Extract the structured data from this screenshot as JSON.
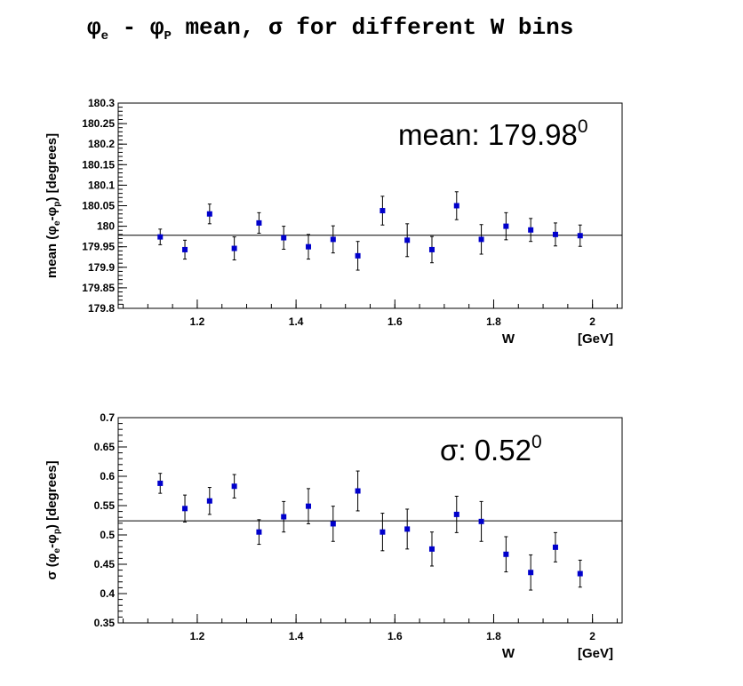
{
  "title_parts": {
    "phi": "φ",
    "sub_e": "e",
    "minus": " - ",
    "sub_p": "P",
    "rest": " mean, σ for different W bins"
  },
  "colors": {
    "marker": "#0000cc",
    "axis": "#000000",
    "fit_line": "#000000"
  },
  "chart_data": [
    {
      "type": "scatter",
      "name": "mean",
      "annotation_text": "mean: 179.98",
      "annotation_sup": "0",
      "ylabel_parts": [
        "mean (",
        "φ",
        "e",
        "-",
        "φ",
        "p",
        ")   [degrees]"
      ],
      "xlabel": "W",
      "xunit": "[GeV]",
      "xlim": [
        1.04,
        2.06
      ],
      "ylim": [
        179.8,
        180.3
      ],
      "x_ticks": [
        1.2,
        1.4,
        1.6,
        1.8,
        2.0
      ],
      "x_tick_labels": [
        "1.2",
        "1.4",
        "1.6",
        "1.8",
        "2"
      ],
      "y_ticks": [
        179.8,
        179.85,
        179.9,
        179.95,
        180.0,
        180.05,
        180.1,
        180.15,
        180.2,
        180.25,
        180.3
      ],
      "y_tick_labels": [
        "179.8",
        "179.85",
        "179.9",
        "179.95",
        "180",
        "180.05",
        "180.1",
        "180.15",
        "180.2",
        "180.25",
        "180.3"
      ],
      "fit_value": 179.978,
      "x": [
        1.125,
        1.175,
        1.225,
        1.275,
        1.325,
        1.375,
        1.425,
        1.475,
        1.525,
        1.575,
        1.625,
        1.675,
        1.725,
        1.775,
        1.825,
        1.875,
        1.925,
        1.975
      ],
      "y": [
        179.974,
        179.943,
        180.03,
        179.946,
        180.008,
        179.972,
        179.95,
        179.968,
        179.928,
        180.038,
        179.966,
        179.943,
        180.05,
        179.968,
        180.0,
        179.991,
        179.98,
        179.977
      ],
      "yerr": [
        0.019,
        0.023,
        0.024,
        0.028,
        0.025,
        0.028,
        0.03,
        0.033,
        0.035,
        0.035,
        0.04,
        0.032,
        0.034,
        0.036,
        0.033,
        0.028,
        0.028,
        0.026
      ]
    },
    {
      "type": "scatter",
      "name": "sigma",
      "annotation_text": "σ: 0.52",
      "annotation_sup": "0",
      "ylabel_parts": [
        "σ (",
        "φ",
        "e",
        "-",
        "φ",
        "p",
        ")   [degrees]"
      ],
      "xlabel": "W",
      "xunit": "[GeV]",
      "xlim": [
        1.04,
        2.06
      ],
      "ylim": [
        0.35,
        0.7
      ],
      "x_ticks": [
        1.2,
        1.4,
        1.6,
        1.8,
        2.0
      ],
      "x_tick_labels": [
        "1.2",
        "1.4",
        "1.6",
        "1.8",
        "2"
      ],
      "y_ticks": [
        0.35,
        0.4,
        0.45,
        0.5,
        0.55,
        0.6,
        0.65,
        0.7
      ],
      "y_tick_labels": [
        "0.35",
        "0.4",
        "0.45",
        "0.5",
        "0.55",
        "0.6",
        "0.65",
        "0.7"
      ],
      "fit_value": 0.524,
      "x": [
        1.125,
        1.175,
        1.225,
        1.275,
        1.325,
        1.375,
        1.425,
        1.475,
        1.525,
        1.575,
        1.625,
        1.675,
        1.725,
        1.775,
        1.825,
        1.875,
        1.925,
        1.975
      ],
      "y": [
        0.588,
        0.545,
        0.558,
        0.583,
        0.505,
        0.531,
        0.549,
        0.519,
        0.575,
        0.505,
        0.51,
        0.476,
        0.535,
        0.523,
        0.467,
        0.436,
        0.479,
        0.434
      ],
      "yerr": [
        0.017,
        0.023,
        0.023,
        0.02,
        0.021,
        0.026,
        0.03,
        0.03,
        0.034,
        0.032,
        0.034,
        0.029,
        0.031,
        0.034,
        0.03,
        0.03,
        0.025,
        0.023
      ]
    }
  ]
}
